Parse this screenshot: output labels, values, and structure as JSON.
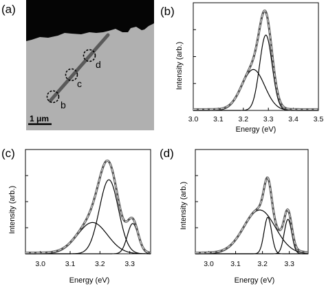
{
  "panels": {
    "a": {
      "letter": "(a)",
      "markers": [
        "b",
        "c",
        "d"
      ],
      "scale_bar": "1 μm"
    },
    "b": {
      "letter": "(b)"
    },
    "c": {
      "letter": "(c)"
    },
    "d": {
      "letter": "(d)"
    }
  },
  "colors": {
    "component": "#000000",
    "fit_outer": "#555555",
    "fit_inner": "#d0d0d0",
    "tem_background": "#b0b0b0",
    "tem_dark": "#050505",
    "nanowire": "#5a5a5a"
  },
  "chart_data": [
    {
      "panel": "b",
      "type": "line",
      "xlabel": "Energy (eV)",
      "ylabel": "Intensity (arb.)",
      "xlim": [
        3.0,
        3.5
      ],
      "ylim": [
        0,
        1
      ],
      "xticks": [
        "3.0",
        "3.1",
        "3.2",
        "3.3",
        "3.4",
        "3.5"
      ],
      "yticks": [
        0.25,
        0.5,
        0.75,
        1.0
      ],
      "grid": false,
      "components": [
        {
          "center": 3.29,
          "height": 0.7,
          "width": 0.025
        },
        {
          "center": 3.24,
          "height": 0.38,
          "width": 0.045
        }
      ]
    },
    {
      "panel": "c",
      "type": "line",
      "xlabel": "Energy (eV)",
      "ylabel": "Intensity (arb.)",
      "xlim": [
        2.95,
        3.37
      ],
      "ylim": [
        0,
        1
      ],
      "xticks": [
        "3.0",
        "3.1",
        "3.2",
        "3.3"
      ],
      "yticks": [
        0.25,
        0.5,
        0.75,
        1.0
      ],
      "grid": false,
      "components": [
        {
          "center": 3.23,
          "height": 0.71,
          "width": 0.032
        },
        {
          "center": 3.175,
          "height": 0.3,
          "width": 0.05
        },
        {
          "center": 3.31,
          "height": 0.29,
          "width": 0.018
        }
      ]
    },
    {
      "panel": "d",
      "type": "line",
      "xlabel": "Energy (eV)",
      "ylabel": "Intensity (arb.)",
      "xlim": [
        2.95,
        3.37
      ],
      "ylim": [
        0,
        1
      ],
      "xticks": [
        "3.0",
        "3.1",
        "3.2",
        "3.3"
      ],
      "yticks": [
        0.25,
        0.5,
        0.75,
        1.0
      ],
      "grid": false,
      "components": [
        {
          "center": 3.19,
          "height": 0.42,
          "width": 0.058
        },
        {
          "center": 3.22,
          "height": 0.35,
          "width": 0.014
        },
        {
          "center": 3.295,
          "height": 0.33,
          "width": 0.014
        }
      ]
    }
  ]
}
